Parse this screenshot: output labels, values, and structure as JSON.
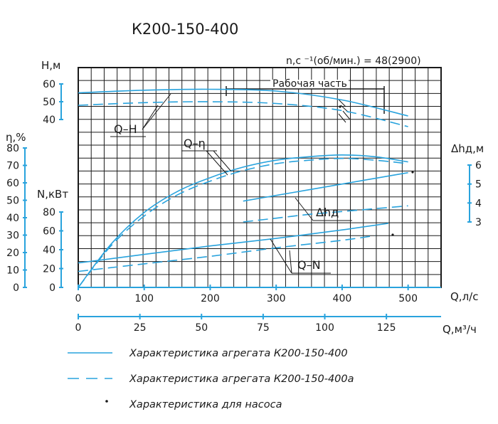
{
  "title": "К200-150-400",
  "speed_label": "n,c ⁻¹(об/мин.) = 48(2900)",
  "working_part_label": "Рабочая часть",
  "axes": {
    "h": {
      "label": "H,м",
      "ticks": [
        "60",
        "50",
        "40"
      ]
    },
    "eta": {
      "label": "η,%",
      "ticks": [
        "80",
        "70",
        "60",
        "50",
        "40",
        "30",
        "20",
        "10",
        "0"
      ]
    },
    "n": {
      "label": "N,кВт",
      "ticks": [
        "80",
        "60",
        "40",
        "20",
        "0"
      ]
    },
    "dh": {
      "label": "Δhд,м",
      "ticks": [
        "6",
        "5",
        "4",
        "3"
      ]
    },
    "q_ls": {
      "label": "Q,л/с",
      "ticks": [
        "0",
        "100",
        "200",
        "300",
        "400",
        "500"
      ]
    },
    "q_m3h": {
      "label": "Q,м³/ч",
      "ticks": [
        "0",
        "25",
        "50",
        "75",
        "100",
        "125"
      ]
    }
  },
  "curve_labels": {
    "qh": "Q–H",
    "qeta": "Q–η",
    "dh": "Δhд",
    "qn": "Q–N"
  },
  "legend": [
    {
      "style": "solid",
      "text": "Характеристика агрегата К200-150-400"
    },
    {
      "style": "dashed",
      "text": "Характеристика агрегата К200-150-400а"
    },
    {
      "style": "dot",
      "text": "Характеристика для насоса"
    }
  ],
  "colors": {
    "curve": "#29a3dd",
    "axis": "#29a3dd",
    "grid": "#1a1a1a",
    "text": "#1a1a1a"
  },
  "chart_data": {
    "type": "line",
    "x_unit": "Q, л/с",
    "xlim": [
      0,
      550
    ],
    "series": [
      {
        "name": "Q–H",
        "variant": "К200-150-400",
        "axis": "h",
        "x": [
          0,
          100,
          200,
          300,
          400,
          500
        ],
        "y": [
          55,
          56.5,
          57,
          56,
          51,
          42
        ]
      },
      {
        "name": "Q–H",
        "variant": "К200-150-400а",
        "axis": "h",
        "x": [
          0,
          100,
          200,
          300,
          400,
          500
        ],
        "y": [
          48,
          49.5,
          50,
          49,
          45,
          36
        ]
      },
      {
        "name": "Q–η",
        "variant": "К200-150-400",
        "axis": "eta",
        "x": [
          0,
          50,
          100,
          150,
          200,
          250,
          300,
          350,
          400,
          450,
          500
        ],
        "y": [
          0,
          25,
          43,
          55,
          63,
          69,
          73,
          75,
          76,
          75,
          72
        ]
      },
      {
        "name": "Q–η",
        "variant": "К200-150-400а",
        "axis": "eta",
        "x": [
          0,
          50,
          100,
          150,
          200,
          250,
          300,
          350,
          400,
          450,
          500
        ],
        "y": [
          0,
          24,
          41,
          53,
          61,
          67,
          71,
          73,
          74,
          73,
          71
        ]
      },
      {
        "name": "Δhд",
        "variant": "К200-150-400",
        "axis": "dh",
        "x": [
          250,
          300,
          350,
          400,
          450,
          500
        ],
        "y": [
          4.1,
          4.4,
          4.7,
          5.0,
          5.3,
          5.6
        ]
      },
      {
        "name": "Δhд",
        "variant": "К200-150-400а",
        "axis": "dh",
        "x": [
          250,
          300,
          350,
          400,
          450,
          500
        ],
        "y": [
          3.0,
          3.2,
          3.4,
          3.55,
          3.7,
          3.85
        ]
      },
      {
        "name": "Q–N",
        "variant": "К200-150-400",
        "axis": "n",
        "x": [
          0,
          100,
          200,
          300,
          400,
          470
        ],
        "y": [
          26,
          35,
          44,
          52,
          61,
          68
        ]
      },
      {
        "name": "Q–N",
        "variant": "К200-150-400а",
        "axis": "n",
        "x": [
          0,
          100,
          200,
          300,
          400,
          450
        ],
        "y": [
          17,
          25,
          33,
          42,
          50,
          55
        ]
      }
    ],
    "ylims": {
      "h": [
        40,
        60
      ],
      "eta": [
        0,
        80
      ],
      "n": [
        0,
        80
      ],
      "dh": [
        3,
        6
      ]
    },
    "working_range_q": [
      220,
      470
    ],
    "grid": true,
    "legend_position": "bottom"
  }
}
